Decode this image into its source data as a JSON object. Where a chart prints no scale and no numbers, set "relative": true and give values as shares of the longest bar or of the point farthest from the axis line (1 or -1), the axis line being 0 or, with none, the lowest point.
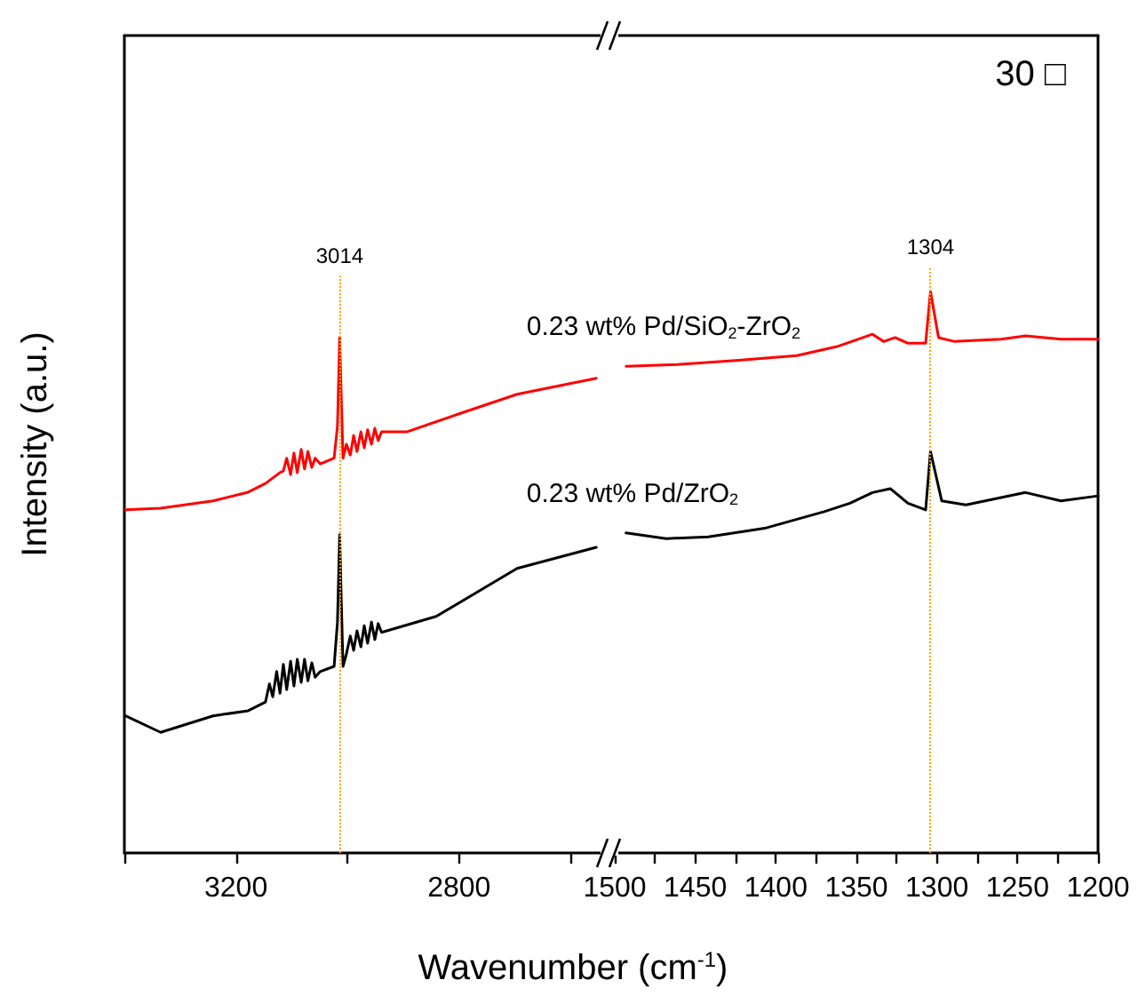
{
  "chart_data": [
    {
      "type": "line",
      "relative": true,
      "ylabel": "Intensity (a.u.)",
      "xlabel": "Wavenumber (cm$^{-1}$)",
      "xlim": [
        3400,
        2540
      ],
      "xticks": [
        {
          "value": 3400,
          "label": null
        },
        3200,
        {
          "value": 3000,
          "label": null
        },
        2800,
        {
          "value": 2600,
          "label": null
        }
      ],
      "tick_labels": "x",
      "legend": false,
      "grid": false,
      "marker": "none",
      "line_style": "solid",
      "ref_lines": [
        {
          "axis": "x",
          "value": 3014,
          "label": "3014",
          "color": "#ffa500",
          "line_style": "dotted"
        }
      ],
      "series": [
        {
          "color": "#ff0000",
          "x": [
            3398,
            3335,
            3241,
            3178,
            3147,
            3121,
            3115,
            3109,
            3102,
            3096,
            3090,
            3083,
            3077,
            3071,
            3064,
            3058,
            3049,
            3024,
            3018,
            3014,
            3011,
            3008,
            3002,
            2995,
            2989,
            2983,
            2976,
            2970,
            2964,
            2957,
            2951,
            2945,
            2939,
            2894,
            2800,
            2696,
            2554
          ],
          "values": [
            0.666,
            0.669,
            0.683,
            0.7,
            0.717,
            0.738,
            0.741,
            0.766,
            0.734,
            0.776,
            0.738,
            0.783,
            0.745,
            0.779,
            0.748,
            0.766,
            0.755,
            0.766,
            0.828,
            1.0,
            0.879,
            0.766,
            0.793,
            0.772,
            0.81,
            0.779,
            0.817,
            0.786,
            0.821,
            0.793,
            0.824,
            0.8,
            0.817,
            0.817,
            0.852,
            0.89,
            0.921
          ]
        },
        {
          "color": "#000000",
          "x": [
            3398,
            3335,
            3241,
            3178,
            3147,
            3140,
            3134,
            3127,
            3121,
            3115,
            3109,
            3102,
            3096,
            3090,
            3083,
            3077,
            3071,
            3064,
            3058,
            3049,
            3024,
            3018,
            3014,
            3011,
            3008,
            3002,
            2995,
            2989,
            2983,
            2976,
            2970,
            2964,
            2957,
            2951,
            2945,
            2939,
            2841,
            2696,
            2554
          ],
          "values": [
            0.266,
            0.234,
            0.266,
            0.276,
            0.293,
            0.328,
            0.303,
            0.352,
            0.31,
            0.366,
            0.317,
            0.372,
            0.324,
            0.376,
            0.331,
            0.376,
            0.334,
            0.369,
            0.341,
            0.352,
            0.362,
            0.448,
            0.617,
            0.483,
            0.362,
            0.386,
            0.421,
            0.393,
            0.431,
            0.4,
            0.441,
            0.407,
            0.448,
            0.414,
            0.445,
            0.428,
            0.459,
            0.552,
            0.593
          ]
        }
      ]
    },
    {
      "type": "line",
      "relative": true,
      "annotations": [
        "30 □"
      ],
      "xlim": [
        1500,
        1200
      ],
      "xticks": [
        1500,
        {
          "value": 1475,
          "label": null
        },
        1450,
        {
          "value": 1425,
          "label": null
        },
        1400,
        {
          "value": 1375,
          "label": null
        },
        1350,
        {
          "value": 1325,
          "label": null
        },
        1300,
        {
          "value": 1275,
          "label": null
        },
        1250,
        {
          "value": 1225,
          "label": null
        },
        1200
      ],
      "tick_labels": "x",
      "legend": false,
      "grid": false,
      "marker": "none",
      "line_style": "solid",
      "ref_lines": [
        {
          "axis": "x",
          "value": 1304,
          "label": "1304",
          "color": "#ffa500",
          "line_style": "dotted"
        }
      ],
      "series": [
        {
          "name": "0.23 wt% Pd/SiO$_{2}$-ZrO$_{2}$",
          "color": "#ff0000",
          "x": [
            1493,
            1461,
            1425,
            1387,
            1362,
            1340,
            1333,
            1326,
            1318,
            1307,
            1304,
            1299,
            1289,
            1260,
            1245,
            1223,
            1200
          ],
          "values": [
            0.867,
            0.87,
            0.877,
            0.886,
            0.902,
            0.924,
            0.911,
            0.918,
            0.908,
            0.908,
            1.0,
            0.918,
            0.911,
            0.915,
            0.921,
            0.915,
            0.915
          ]
        },
        {
          "name": "0.23 wt% Pd/ZrO$_{2}$",
          "color": "#000000",
          "x": [
            1493,
            1468,
            1442,
            1406,
            1370,
            1354,
            1340,
            1329,
            1318,
            1307,
            1304,
            1297,
            1282,
            1245,
            1223,
            1200
          ],
          "values": [
            0.57,
            0.56,
            0.563,
            0.579,
            0.608,
            0.623,
            0.642,
            0.649,
            0.623,
            0.611,
            0.715,
            0.627,
            0.62,
            0.642,
            0.627,
            0.636
          ]
        }
      ]
    }
  ]
}
